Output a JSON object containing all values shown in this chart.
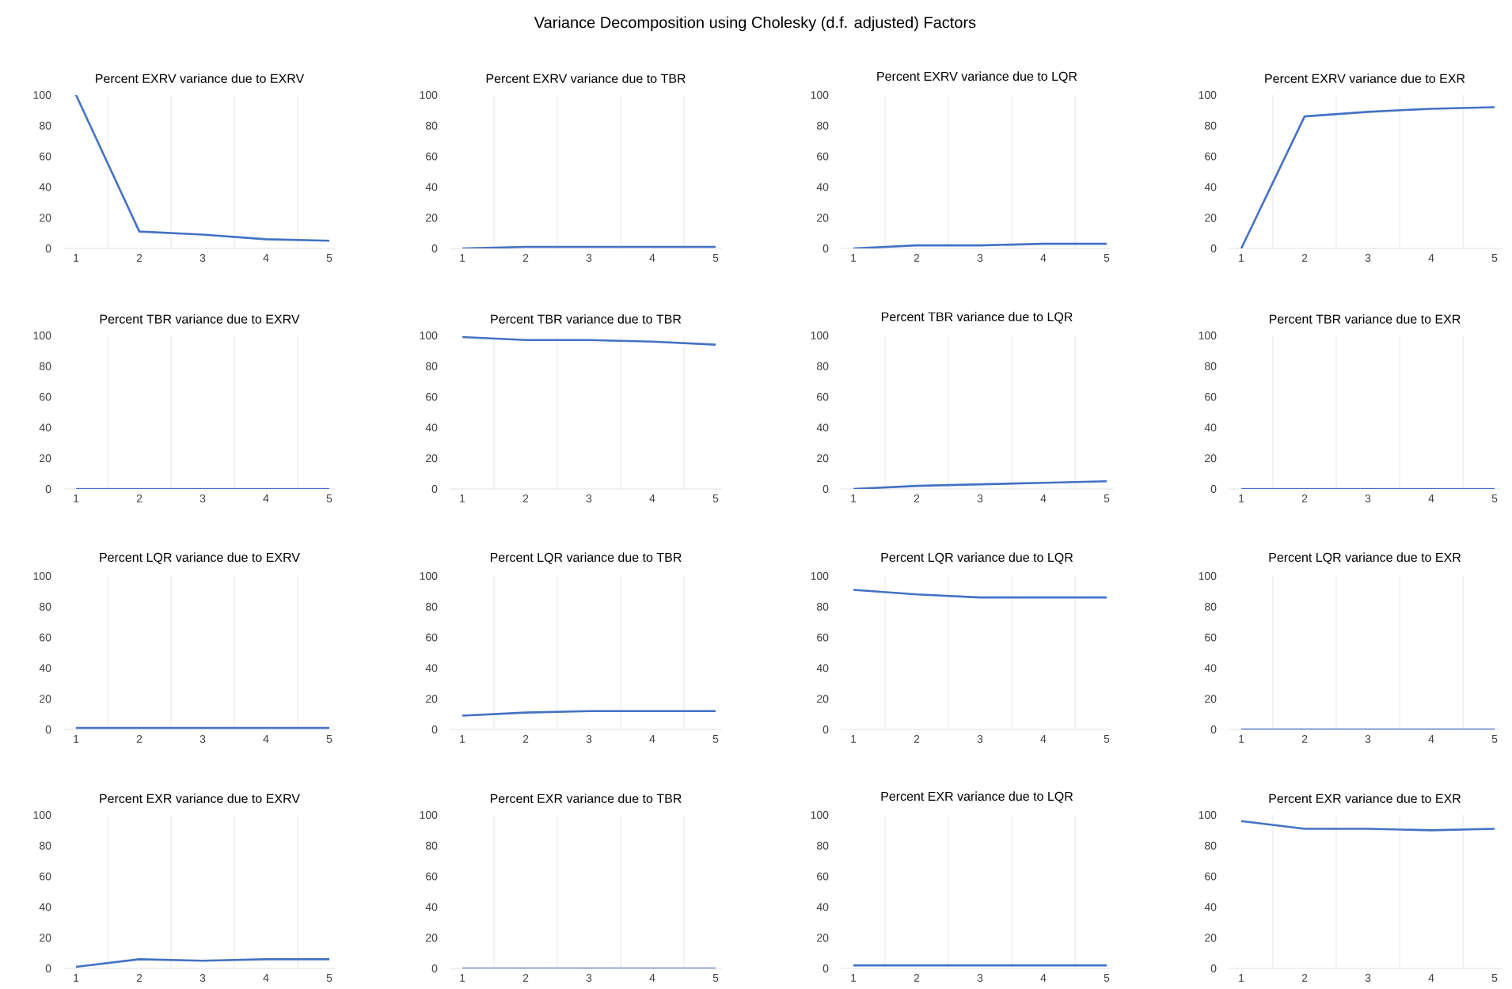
{
  "chart_data": [
    {
      "type": "line",
      "title": "Percent EXRV variance due to EXRV",
      "annotations": [
        "Variance Decomposition using Cholesky (d.f. adjusted) Factors"
      ],
      "categories": [
        "1",
        "2",
        "3",
        "4",
        "5"
      ],
      "values": [
        100,
        11,
        9,
        6,
        5
      ],
      "color": "#4472c4",
      "ylim": [
        0,
        100
      ],
      "yticks": [
        0,
        20,
        40,
        60,
        80,
        100
      ],
      "grid": "x"
    },
    {
      "type": "line",
      "title": "Percent EXRV variance due to TBR",
      "categories": [
        "1",
        "2",
        "3",
        "4",
        "5"
      ],
      "values": [
        0,
        1,
        1,
        1,
        1
      ],
      "color": "#4472c4",
      "ylim": [
        0,
        100
      ],
      "yticks": [
        0,
        20,
        40,
        60,
        80,
        100
      ],
      "grid": "x"
    },
    {
      "type": "line",
      "title": "Percent EXRV variance due to LQR",
      "categories": [
        "1",
        "2",
        "3",
        "4",
        "5"
      ],
      "values": [
        0,
        2,
        2,
        3,
        3
      ],
      "color": "#4472c4",
      "ylim": [
        0,
        100
      ],
      "yticks": [
        0,
        20,
        40,
        60,
        80,
        100
      ],
      "grid": "x"
    },
    {
      "type": "line",
      "title": "Percent EXRV variance due to EXR",
      "categories": [
        "1",
        "2",
        "3",
        "4",
        "5"
      ],
      "values": [
        0,
        86,
        89,
        91,
        92
      ],
      "color": "#4472c4",
      "ylim": [
        0,
        100
      ],
      "yticks": [
        0,
        20,
        40,
        60,
        80,
        100
      ],
      "grid": "x"
    },
    {
      "type": "line",
      "title": "Percent TBR variance due to EXRV",
      "categories": [
        "1",
        "2",
        "3",
        "4",
        "5"
      ],
      "values": [
        0,
        0,
        0,
        0,
        0
      ],
      "color": "#4472c4",
      "ylim": [
        0,
        100
      ],
      "yticks": [
        0,
        20,
        40,
        60,
        80,
        100
      ],
      "grid": "x"
    },
    {
      "type": "line",
      "title": "Percent TBR variance due to TBR",
      "categories": [
        "1",
        "2",
        "3",
        "4",
        "5"
      ],
      "values": [
        99,
        97,
        97,
        96,
        94
      ],
      "color": "#4472c4",
      "ylim": [
        0,
        100
      ],
      "yticks": [
        0,
        20,
        40,
        60,
        80,
        100
      ],
      "grid": "x"
    },
    {
      "type": "line",
      "title": "Percent TBR variance due to LQR",
      "categories": [
        "1",
        "2",
        "3",
        "4",
        "5"
      ],
      "values": [
        0,
        2,
        3,
        4,
        5
      ],
      "color": "#4472c4",
      "ylim": [
        0,
        100
      ],
      "yticks": [
        0,
        20,
        40,
        60,
        80,
        100
      ],
      "grid": "x"
    },
    {
      "type": "line",
      "title": "Percent TBR variance due to EXR",
      "categories": [
        "1",
        "2",
        "3",
        "4",
        "5"
      ],
      "values": [
        0,
        0,
        0,
        0,
        0
      ],
      "color": "#4472c4",
      "ylim": [
        0,
        100
      ],
      "yticks": [
        0,
        20,
        40,
        60,
        80,
        100
      ],
      "grid": "x"
    },
    {
      "type": "line",
      "title": "Percent LQR variance due to EXRV",
      "categories": [
        "1",
        "2",
        "3",
        "4",
        "5"
      ],
      "values": [
        1,
        1,
        1,
        1,
        1
      ],
      "color": "#4472c4",
      "ylim": [
        0,
        100
      ],
      "yticks": [
        0,
        20,
        40,
        60,
        80,
        100
      ],
      "grid": "x"
    },
    {
      "type": "line",
      "title": "Percent LQR variance due to TBR",
      "categories": [
        "1",
        "2",
        "3",
        "4",
        "5"
      ],
      "values": [
        9,
        11,
        12,
        12,
        12
      ],
      "color": "#4472c4",
      "ylim": [
        0,
        100
      ],
      "yticks": [
        0,
        20,
        40,
        60,
        80,
        100
      ],
      "grid": "x"
    },
    {
      "type": "line",
      "title": "Percent LQR variance due to LQR",
      "categories": [
        "1",
        "2",
        "3",
        "4",
        "5"
      ],
      "values": [
        91,
        88,
        86,
        86,
        86
      ],
      "color": "#4472c4",
      "ylim": [
        0,
        100
      ],
      "yticks": [
        0,
        20,
        40,
        60,
        80,
        100
      ],
      "grid": "x"
    },
    {
      "type": "line",
      "title": "Percent LQR variance due to EXR",
      "categories": [
        "1",
        "2",
        "3",
        "4",
        "5"
      ],
      "values": [
        0,
        0,
        0,
        0,
        0
      ],
      "color": "#4472c4",
      "ylim": [
        0,
        100
      ],
      "yticks": [
        0,
        20,
        40,
        60,
        80,
        100
      ],
      "grid": "x"
    },
    {
      "type": "line",
      "title": "Percent EXR variance due to EXRV",
      "categories": [
        "1",
        "2",
        "3",
        "4",
        "5"
      ],
      "values": [
        1,
        6,
        5,
        6,
        6
      ],
      "color": "#4472c4",
      "ylim": [
        0,
        100
      ],
      "yticks": [
        0,
        20,
        40,
        60,
        80,
        100
      ],
      "grid": "x"
    },
    {
      "type": "line",
      "title": "Percent EXR variance due to TBR",
      "categories": [
        "1",
        "2",
        "3",
        "4",
        "5"
      ],
      "values": [
        0,
        0,
        0,
        0,
        0
      ],
      "color": "#4472c4",
      "ylim": [
        0,
        100
      ],
      "yticks": [
        0,
        20,
        40,
        60,
        80,
        100
      ],
      "grid": "x"
    },
    {
      "type": "line",
      "title": "Percent EXR variance due to LQR",
      "categories": [
        "1",
        "2",
        "3",
        "4",
        "5"
      ],
      "values": [
        2,
        2,
        2,
        2,
        2
      ],
      "color": "#4472c4",
      "ylim": [
        0,
        100
      ],
      "yticks": [
        0,
        20,
        40,
        60,
        80,
        100
      ],
      "grid": "x"
    },
    {
      "type": "line",
      "title": "Percent EXR variance due to EXR",
      "categories": [
        "1",
        "2",
        "3",
        "4",
        "5"
      ],
      "values": [
        96,
        91,
        91,
        90,
        91
      ],
      "color": "#4472c4",
      "ylim": [
        0,
        100
      ],
      "yticks": [
        0,
        20,
        40,
        60,
        80,
        100
      ],
      "grid": "x"
    }
  ]
}
